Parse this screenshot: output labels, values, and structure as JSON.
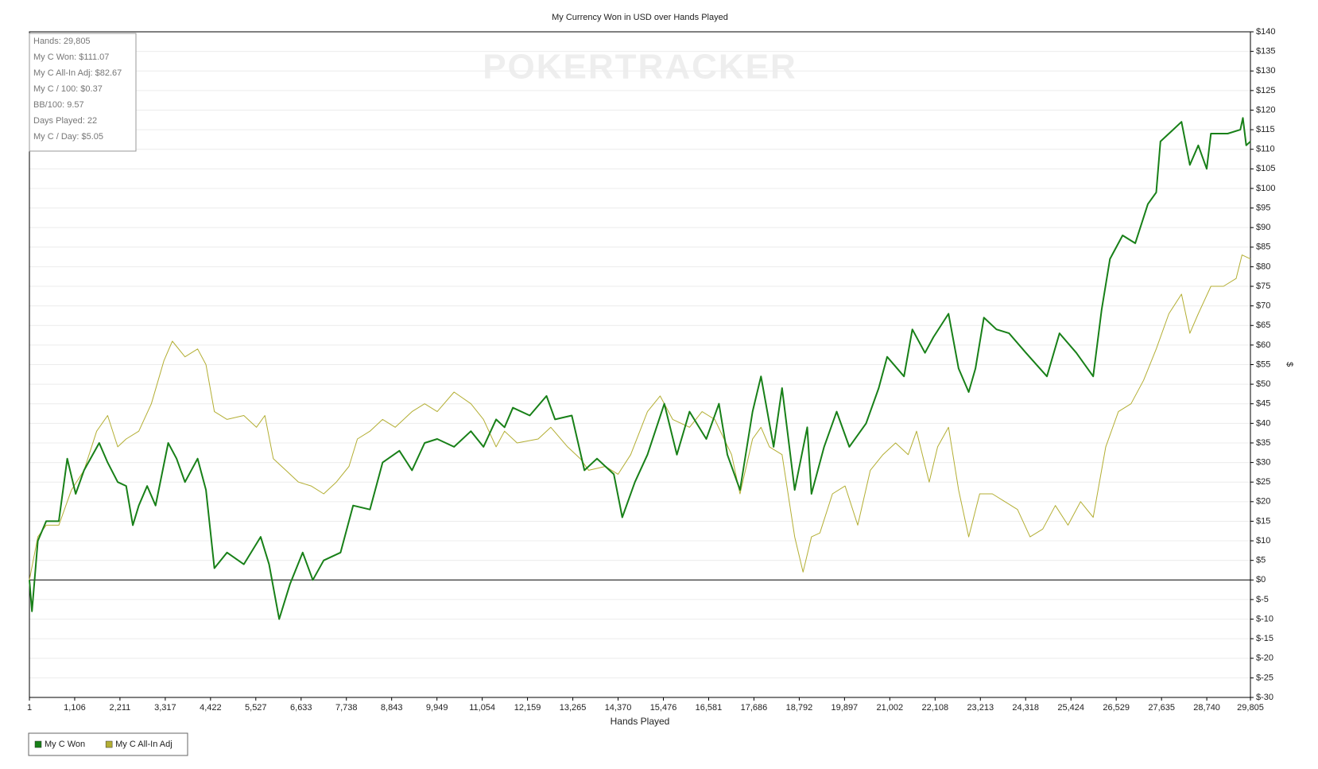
{
  "chart_data": {
    "type": "line",
    "title": "My Currency Won in USD over Hands Played",
    "x_label": "Hands Played",
    "y_label": "$",
    "watermark": "POKERTRACKER",
    "stats": [
      "Hands: 29,805",
      "My C Won: $111.07",
      "My C All-In Adj: $82.67",
      "My C / 100: $0.37",
      "BB/100: 9.57",
      "Days Played: 22",
      "My C / Day: $5.05"
    ],
    "grid": true,
    "legend": "bottom-left",
    "xlim": [
      1,
      29805
    ],
    "ylim": [
      -30,
      140
    ],
    "xticks": [
      1,
      {
        "value": 1106,
        "label": "1,106"
      },
      {
        "value": 2211,
        "label": "2,211"
      },
      {
        "value": 3317,
        "label": "3,317"
      },
      {
        "value": 4422,
        "label": "4,422"
      },
      {
        "value": 5527,
        "label": "5,527"
      },
      {
        "value": 6633,
        "label": "6,633"
      },
      {
        "value": 7738,
        "label": "7,738"
      },
      {
        "value": 8843,
        "label": "8,843"
      },
      {
        "value": 9949,
        "label": "9,949"
      },
      {
        "value": 11054,
        "label": "11,054"
      },
      {
        "value": 12159,
        "label": "12,159"
      },
      {
        "value": 13265,
        "label": "13,265"
      },
      {
        "value": 14370,
        "label": "14,370"
      },
      {
        "value": 15476,
        "label": "15,476"
      },
      {
        "value": 16581,
        "label": "16,581"
      },
      {
        "value": 17686,
        "label": "17,686"
      },
      {
        "value": 18792,
        "label": "18,792"
      },
      {
        "value": 19897,
        "label": "19,897"
      },
      {
        "value": 21002,
        "label": "21,002"
      },
      {
        "value": 22108,
        "label": "22,108"
      },
      {
        "value": 23213,
        "label": "23,213"
      },
      {
        "value": 24318,
        "label": "24,318"
      },
      {
        "value": 25424,
        "label": "25,424"
      },
      {
        "value": 26529,
        "label": "26,529"
      },
      {
        "value": 27635,
        "label": "27,635"
      },
      {
        "value": 28740,
        "label": "28,740"
      },
      {
        "value": 29805,
        "label": "29,805"
      }
    ],
    "yticks": [
      {
        "value": -30,
        "label": "$-30"
      },
      {
        "value": -25,
        "label": "$-25"
      },
      {
        "value": -20,
        "label": "$-20"
      },
      {
        "value": -15,
        "label": "$-15"
      },
      {
        "value": -10,
        "label": "$-10"
      },
      {
        "value": -5,
        "label": "$-5"
      },
      {
        "value": 0,
        "label": "$0"
      },
      {
        "value": 5,
        "label": "$5"
      },
      {
        "value": 10,
        "label": "$10"
      },
      {
        "value": 15,
        "label": "$15"
      },
      {
        "value": 20,
        "label": "$20"
      },
      {
        "value": 25,
        "label": "$25"
      },
      {
        "value": 30,
        "label": "$30"
      },
      {
        "value": 35,
        "label": "$35"
      },
      {
        "value": 40,
        "label": "$40"
      },
      {
        "value": 45,
        "label": "$45"
      },
      {
        "value": 50,
        "label": "$50"
      },
      {
        "value": 55,
        "label": "$55"
      },
      {
        "value": 60,
        "label": "$60"
      },
      {
        "value": 65,
        "label": "$65"
      },
      {
        "value": 70,
        "label": "$70"
      },
      {
        "value": 75,
        "label": "$75"
      },
      {
        "value": 80,
        "label": "$80"
      },
      {
        "value": 85,
        "label": "$85"
      },
      {
        "value": 90,
        "label": "$90"
      },
      {
        "value": 95,
        "label": "$95"
      },
      {
        "value": 100,
        "label": "$100"
      },
      {
        "value": 105,
        "label": "$105"
      },
      {
        "value": 110,
        "label": "$110"
      },
      {
        "value": 115,
        "label": "$115"
      },
      {
        "value": 120,
        "label": "$120"
      },
      {
        "value": 125,
        "label": "$125"
      },
      {
        "value": 130,
        "label": "$130"
      },
      {
        "value": 135,
        "label": "$135"
      },
      {
        "value": 140,
        "label": "$140"
      }
    ],
    "series": [
      {
        "name": "My C Won",
        "color": "#188018",
        "width": 2,
        "x": [
          1,
          63,
          206,
          411,
          719,
          924,
          1130,
          1335,
          1705,
          1910,
          2156,
          2362,
          2526,
          2670,
          2875,
          3080,
          3388,
          3593,
          3798,
          4106,
          4311,
          4517,
          4825,
          5235,
          5646,
          5851,
          6097,
          6364,
          6672,
          6918,
          7185,
          7595,
          7903,
          8314,
          8622,
          9032,
          9340,
          9648,
          9956,
          10367,
          10777,
          11085,
          11393,
          11598,
          11803,
          12214,
          12624,
          12830,
          13240,
          13548,
          13856,
          14266,
          14472,
          14780,
          15087,
          15498,
          15806,
          16114,
          16524,
          16832,
          17038,
          17345,
          17653,
          17859,
          18167,
          18372,
          18680,
          18988,
          19090,
          19398,
          19706,
          20014,
          20424,
          20732,
          20938,
          21348,
          21553,
          21861,
          22066,
          22436,
          22682,
          22929,
          23093,
          23298,
          23606,
          23914,
          24325,
          24838,
          25145,
          25556,
          25966,
          26172,
          26377,
          26685,
          26993,
          27301,
          27506,
          27609,
          27917,
          28122,
          28327,
          28533,
          28738,
          28840,
          29251,
          29559,
          29620,
          29702,
          29805
        ],
        "values": [
          0,
          -8,
          10,
          15,
          15,
          31,
          22,
          28,
          35,
          30,
          25,
          24,
          14,
          19,
          24,
          19,
          35,
          31,
          25,
          31,
          23,
          3,
          7,
          4,
          11,
          4,
          -10,
          -1,
          7,
          0,
          5,
          7,
          19,
          18,
          30,
          33,
          28,
          35,
          36,
          34,
          38,
          34,
          41,
          39,
          44,
          42,
          47,
          41,
          42,
          28,
          31,
          27,
          16,
          25,
          32,
          45,
          32,
          43,
          36,
          45,
          32,
          23,
          43,
          52,
          34,
          49,
          23,
          39,
          22,
          34,
          43,
          34,
          40,
          49,
          57,
          52,
          64,
          58,
          62,
          68,
          54,
          48,
          54,
          67,
          64,
          63,
          58,
          52,
          63,
          58,
          52,
          69,
          82,
          88,
          86,
          96,
          99,
          112,
          115,
          117,
          106,
          111,
          105,
          114,
          114,
          115,
          118,
          111,
          112
        ]
      },
      {
        "name": "My C All-In Adj",
        "color": "#b3ae33",
        "width": 1,
        "x": [
          1,
          206,
          411,
          719,
          1027,
          1335,
          1643,
          1910,
          2156,
          2362,
          2670,
          2977,
          3285,
          3490,
          3798,
          4106,
          4311,
          4517,
          4825,
          5235,
          5543,
          5748,
          5954,
          6261,
          6569,
          6877,
          7185,
          7493,
          7801,
          8006,
          8314,
          8622,
          8930,
          9340,
          9648,
          9956,
          10367,
          10777,
          11085,
          11393,
          11598,
          11906,
          12420,
          12727,
          13138,
          13446,
          13651,
          14061,
          14369,
          14677,
          15087,
          15395,
          15703,
          16114,
          16421,
          16729,
          17140,
          17345,
          17653,
          17859,
          18064,
          18372,
          18680,
          18885,
          19090,
          19296,
          19603,
          19911,
          20219,
          20527,
          20835,
          21143,
          21451,
          21656,
          21964,
          22169,
          22436,
          22682,
          22929,
          23196,
          23504,
          23811,
          24119,
          24427,
          24735,
          25043,
          25351,
          25658,
          25966,
          26274,
          26582,
          26890,
          27198,
          27506,
          27814,
          28122,
          28327,
          28533,
          28840,
          29148,
          29456,
          29600,
          29805
        ],
        "values": [
          0,
          11,
          14,
          14,
          23,
          28,
          38,
          42,
          34,
          36,
          38,
          45,
          56,
          61,
          57,
          59,
          55,
          43,
          41,
          42,
          39,
          42,
          31,
          28,
          25,
          24,
          22,
          25,
          29,
          36,
          38,
          41,
          39,
          43,
          45,
          43,
          48,
          45,
          41,
          34,
          38,
          35,
          36,
          39,
          34,
          31,
          28,
          29,
          27,
          32,
          43,
          47,
          41,
          39,
          43,
          41,
          32,
          22,
          36,
          39,
          34,
          32,
          11,
          2,
          11,
          12,
          22,
          24,
          14,
          28,
          32,
          35,
          32,
          38,
          25,
          34,
          39,
          23,
          11,
          22,
          22,
          20,
          18,
          11,
          13,
          19,
          14,
          20,
          16,
          34,
          43,
          45,
          51,
          59,
          68,
          73,
          63,
          68,
          75,
          75,
          77,
          83,
          82
        ]
      }
    ]
  }
}
